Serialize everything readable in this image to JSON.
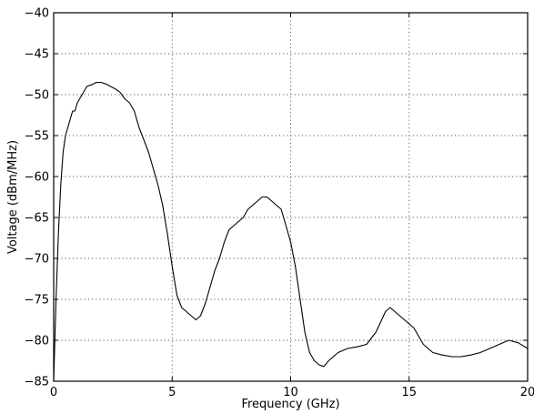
{
  "chart_data": {
    "type": "line",
    "title": "",
    "xlabel": "Frequency (GHz)",
    "ylabel": "Voltage (dBm/MHz)",
    "xlim": [
      0,
      20
    ],
    "ylim": [
      -85,
      -40
    ],
    "xticks": [
      0,
      5,
      10,
      15,
      20
    ],
    "xtick_labels": [
      "0",
      "5",
      "10",
      "15",
      "20"
    ],
    "yticks": [
      -85,
      -80,
      -75,
      -70,
      -65,
      -60,
      -55,
      -50,
      -45,
      -40
    ],
    "ytick_labels": [
      "−85",
      "−80",
      "−75",
      "−70",
      "−65",
      "−60",
      "−55",
      "−50",
      "−45",
      "−40"
    ],
    "grid": true,
    "legend": "none",
    "series": [
      {
        "color": "#000000",
        "x": [
          0,
          0.1,
          0.2,
          0.3,
          0.4,
          0.5,
          0.6,
          0.7,
          0.8,
          0.9,
          1.0,
          1.2,
          1.4,
          1.6,
          1.8,
          2.0,
          2.2,
          2.4,
          2.6,
          2.8,
          3.0,
          3.2,
          3.4,
          3.6,
          3.8,
          4.0,
          4.2,
          4.4,
          4.6,
          4.8,
          5.0,
          5.2,
          5.4,
          5.6,
          5.8,
          6.0,
          6.2,
          6.4,
          6.6,
          6.8,
          7.0,
          7.2,
          7.4,
          7.6,
          7.8,
          8.0,
          8.2,
          8.4,
          8.6,
          8.8,
          9.0,
          9.2,
          9.4,
          9.6,
          9.8,
          10.0,
          10.2,
          10.4,
          10.6,
          10.8,
          11.0,
          11.2,
          11.4,
          11.6,
          11.8,
          12.0,
          12.4,
          12.8,
          13.2,
          13.6,
          14.0,
          14.2,
          14.4,
          14.6,
          14.8,
          15.0,
          15.2,
          15.4,
          15.6,
          15.8,
          16.0,
          16.4,
          16.8,
          17.2,
          17.6,
          18.0,
          18.4,
          18.8,
          19.2,
          19.6,
          20.0
        ],
        "y": [
          -85,
          -75,
          -67,
          -61,
          -57,
          -55,
          -54,
          -53,
          -52,
          -52,
          -51,
          -50,
          -49,
          -48.8,
          -48.5,
          -48.5,
          -48.7,
          -49,
          -49.3,
          -49.7,
          -50.5,
          -51,
          -52,
          -54,
          -55.5,
          -57,
          -59,
          -61,
          -63.5,
          -67,
          -71,
          -74.5,
          -76,
          -76.5,
          -77,
          -77.5,
          -77,
          -75.5,
          -73.5,
          -71.5,
          -70,
          -68,
          -66.5,
          -66,
          -65.5,
          -65,
          -64,
          -63.5,
          -63,
          -62.5,
          -62.5,
          -63,
          -63.5,
          -64,
          -66,
          -68,
          -71,
          -75,
          -79,
          -81.5,
          -82.5,
          -83,
          -83.2,
          -82.5,
          -82,
          -81.5,
          -81,
          -80.8,
          -80.5,
          -79,
          -76.5,
          -76,
          -76.5,
          -77,
          -77.5,
          -78,
          -78.5,
          -79.5,
          -80.5,
          -81,
          -81.5,
          -81.8,
          -82,
          -82,
          -81.8,
          -81.5,
          -81,
          -80.5,
          -80,
          -80.3,
          -81
        ]
      }
    ]
  }
}
